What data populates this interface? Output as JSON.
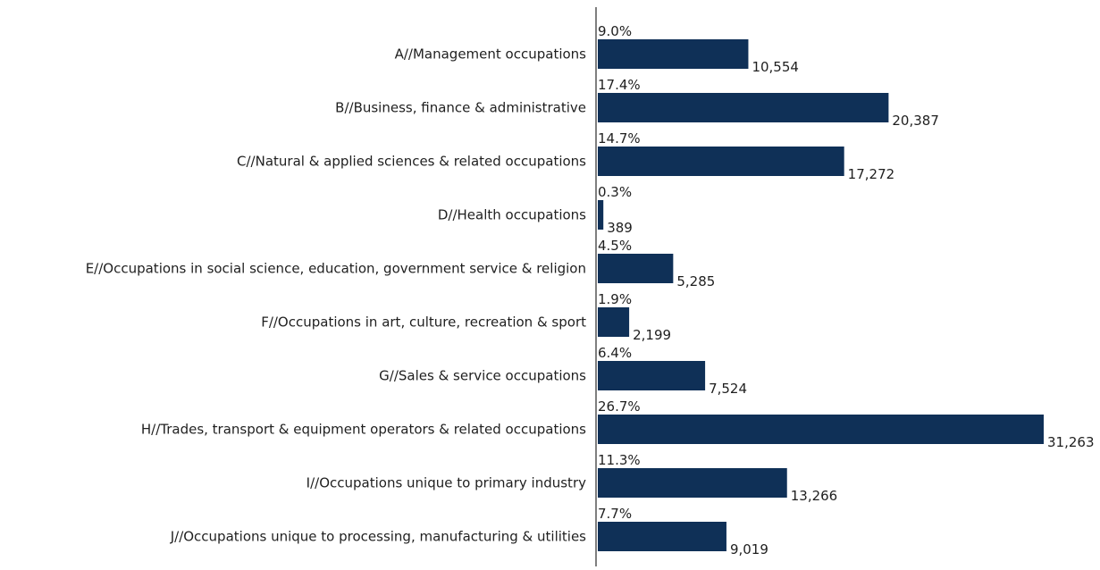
{
  "chart_data": {
    "type": "bar",
    "orientation": "horizontal",
    "categories": [
      "A//Management occupations",
      "B//Business, finance & administrative",
      "C//Natural & applied sciences & related occupations",
      "D//Health occupations",
      "E//Occupations in social science, education, government service & religion",
      "F//Occupations in art, culture, recreation & sport",
      "G//Sales & service occupations",
      "H//Trades, transport & equipment operators & related occupations",
      "I//Occupations unique to primary industry",
      "J//Occupations unique to processing, manufacturing & utilities"
    ],
    "values": [
      10554,
      20387,
      17272,
      389,
      5285,
      2199,
      7524,
      31263,
      13266,
      9019
    ],
    "value_labels": [
      "10,554",
      "20,387",
      "17,272",
      "389",
      "5,285",
      "2,199",
      "7,524",
      "31,263",
      "13,266",
      "9,019"
    ],
    "percent_labels": [
      "9.0%",
      "17.4%",
      "14.7%",
      "0.3%",
      "4.5%",
      "1.9%",
      "6.4%",
      "26.7%",
      "11.3%",
      "7.7%"
    ],
    "xlim": [
      0,
      31263
    ],
    "grid": false,
    "legend": "none",
    "bar_color": "#0f3057",
    "axis_color": "#555555",
    "text_color": "#1f1f1f"
  }
}
